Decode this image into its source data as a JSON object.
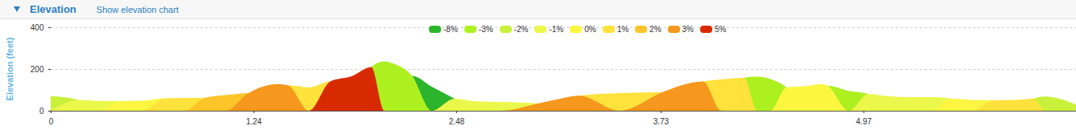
{
  "header": {
    "title": "Elevation",
    "link": "Show elevation chart"
  },
  "chart_data": {
    "type": "area",
    "ylabel": "Elevation (feet)",
    "x": [
      0,
      0.17,
      0.3,
      0.43,
      0.56,
      0.7,
      0.82,
      0.94,
      1.07,
      1.21,
      1.39,
      1.45,
      1.58,
      1.71,
      1.84,
      1.96,
      2.04,
      2.1,
      2.21,
      2.33,
      2.47,
      2.6,
      2.75,
      2.98,
      3.1,
      3.23,
      3.48,
      3.74,
      3.85,
      3.99,
      4.1,
      4.24,
      4.32,
      4.4,
      4.5,
      4.62,
      4.71,
      4.75,
      4.88,
      5.0,
      5.12,
      5.25,
      5.38,
      5.51,
      5.64,
      5.76,
      5.9,
      6.01,
      6.08,
      6.18,
      6.27
    ],
    "series": [
      {
        "name": "-8%",
        "color": "#2cb52c",
        "values": [
          null,
          null,
          null,
          null,
          null,
          null,
          null,
          null,
          null,
          null,
          null,
          null,
          null,
          null,
          null,
          null,
          null,
          null,
          167,
          115,
          58,
          null,
          null,
          null,
          null,
          null,
          null,
          null,
          null,
          null,
          null,
          null,
          null,
          null,
          null,
          null,
          null,
          null,
          null,
          null,
          null,
          null,
          null,
          null,
          null,
          null,
          null,
          null,
          null,
          null,
          null
        ]
      },
      {
        "name": "-3%",
        "color": "#adf020",
        "values": [
          null,
          null,
          null,
          null,
          null,
          null,
          null,
          null,
          null,
          null,
          null,
          null,
          null,
          null,
          null,
          210,
          237,
          225,
          167,
          null,
          null,
          null,
          null,
          null,
          null,
          null,
          null,
          null,
          null,
          null,
          null,
          158,
          163,
          152,
          112,
          null,
          null,
          120,
          95,
          80,
          null,
          null,
          null,
          null,
          null,
          null,
          null,
          null,
          null,
          null,
          null
        ]
      },
      {
        "name": "-2%",
        "color": "#c9f03a",
        "values": [
          70,
          52,
          null,
          null,
          null,
          null,
          null,
          null,
          null,
          null,
          null,
          null,
          null,
          null,
          null,
          null,
          null,
          null,
          null,
          null,
          null,
          null,
          null,
          null,
          null,
          null,
          null,
          null,
          null,
          null,
          null,
          null,
          null,
          null,
          null,
          null,
          null,
          null,
          null,
          null,
          null,
          null,
          null,
          null,
          null,
          null,
          null,
          58,
          68,
          55,
          30
        ]
      },
      {
        "name": "-1%",
        "color": "#ecf74b",
        "values": [
          null,
          52,
          47,
          46,
          null,
          null,
          null,
          null,
          null,
          null,
          null,
          null,
          null,
          null,
          null,
          null,
          null,
          null,
          null,
          null,
          58,
          45,
          42,
          35,
          null,
          null,
          null,
          null,
          null,
          null,
          null,
          null,
          null,
          null,
          null,
          null,
          null,
          null,
          null,
          80,
          70,
          65,
          65,
          58,
          null,
          null,
          null,
          null,
          null,
          null,
          null
        ]
      },
      {
        "name": "0%",
        "color": "#fcf640",
        "values": [
          null,
          null,
          null,
          46,
          48,
          60,
          null,
          null,
          null,
          null,
          null,
          null,
          null,
          null,
          null,
          null,
          null,
          null,
          null,
          null,
          null,
          null,
          null,
          null,
          null,
          null,
          null,
          null,
          null,
          null,
          null,
          null,
          null,
          null,
          112,
          118,
          128,
          120,
          null,
          null,
          null,
          null,
          null,
          58,
          52,
          50,
          null,
          null,
          null,
          null,
          null
        ]
      },
      {
        "name": "1%",
        "color": "#ffe23c",
        "values": [
          null,
          null,
          null,
          null,
          null,
          60,
          62,
          62,
          null,
          null,
          null,
          122,
          112,
          140,
          null,
          null,
          null,
          null,
          null,
          null,
          null,
          null,
          null,
          null,
          null,
          72,
          85,
          88,
          null,
          140,
          150,
          158,
          null,
          null,
          null,
          null,
          null,
          null,
          null,
          null,
          null,
          null,
          null,
          null,
          null,
          50,
          52,
          58,
          null,
          null,
          null
        ]
      },
      {
        "name": "2%",
        "color": "#fdc52a",
        "values": [
          null,
          null,
          null,
          null,
          null,
          null,
          null,
          62,
          75,
          85,
          null,
          null,
          null,
          null,
          null,
          null,
          null,
          null,
          null,
          null,
          null,
          null,
          null,
          null,
          null,
          null,
          null,
          null,
          null,
          null,
          null,
          null,
          null,
          null,
          null,
          null,
          null,
          null,
          null,
          null,
          null,
          null,
          null,
          null,
          null,
          null,
          null,
          null,
          null,
          null,
          null
        ]
      },
      {
        "name": "3%",
        "color": "#f5981d",
        "values": [
          null,
          null,
          null,
          null,
          null,
          null,
          null,
          null,
          null,
          85,
          128,
          122,
          null,
          null,
          null,
          null,
          null,
          null,
          null,
          null,
          null,
          null,
          null,
          35,
          55,
          72,
          null,
          88,
          120,
          140,
          null,
          null,
          null,
          null,
          null,
          null,
          null,
          null,
          null,
          null,
          null,
          null,
          null,
          null,
          null,
          null,
          null,
          null,
          null,
          null,
          null
        ]
      },
      {
        "name": "5%",
        "color": "#d82a00",
        "values": [
          null,
          null,
          null,
          null,
          null,
          null,
          null,
          null,
          null,
          null,
          null,
          null,
          null,
          140,
          165,
          210,
          null,
          null,
          null,
          null,
          null,
          null,
          null,
          null,
          null,
          null,
          null,
          null,
          null,
          null,
          null,
          null,
          null,
          null,
          null,
          null,
          null,
          null,
          null,
          null,
          null,
          null,
          null,
          null,
          null,
          null,
          null,
          null,
          null,
          null,
          null
        ]
      }
    ],
    "xlim": [
      0,
      6.27
    ],
    "xticks": [
      0,
      1.24,
      2.48,
      3.73,
      4.97
    ],
    "ylim": [
      0,
      400
    ],
    "yticks": [
      0,
      200,
      400
    ],
    "grid": true,
    "legend": "top"
  }
}
